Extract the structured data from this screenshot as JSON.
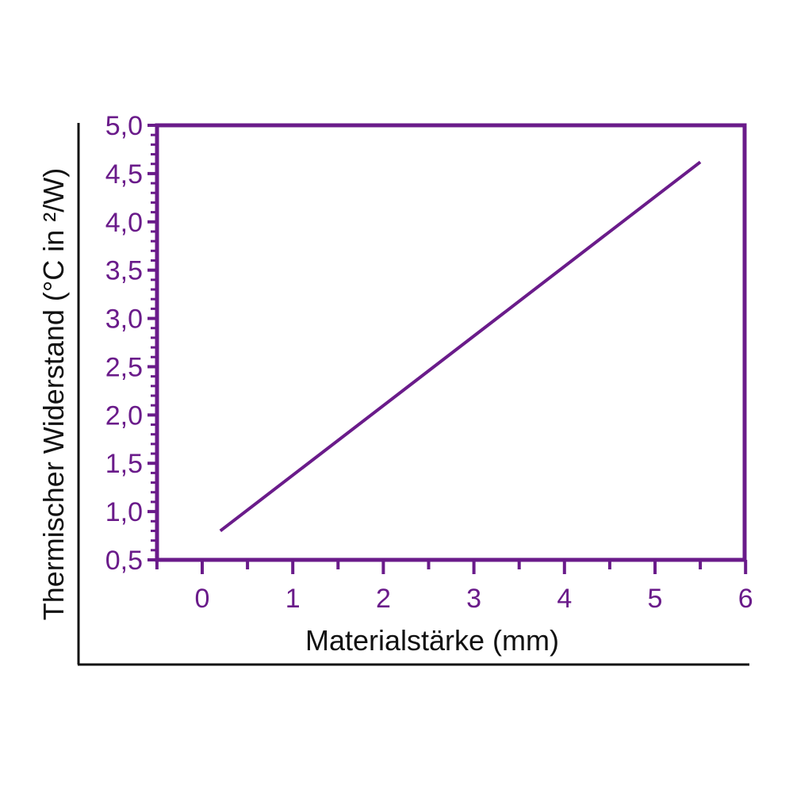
{
  "chart_data": {
    "type": "line",
    "xlabel": "Materialstärke (mm)",
    "ylabel": "Thermischer Widerstand (°C in ²/W)",
    "xlim": [
      -0.5,
      6
    ],
    "ylim": [
      0.5,
      5.0
    ],
    "x_ticks": [
      0,
      1,
      2,
      3,
      4,
      5,
      6
    ],
    "x_tick_labels": [
      "0",
      "1",
      "2",
      "3",
      "4",
      "5",
      "6"
    ],
    "y_ticks": [
      0.5,
      1.0,
      1.5,
      2.0,
      2.5,
      3.0,
      3.5,
      4.0,
      4.5,
      5.0
    ],
    "y_tick_labels": [
      "0,5",
      "1,0",
      "1,5",
      "2,0",
      "2,5",
      "3,0",
      "3,5",
      "4,0",
      "4,5",
      "5,0"
    ],
    "series": [
      {
        "x": [
          0.2,
          5.5
        ],
        "y": [
          0.8,
          4.62
        ]
      }
    ],
    "grid": false,
    "colors": {
      "accent": "#6a1b8a",
      "line": "#6a1b8a",
      "outer_axis": "#111111"
    }
  }
}
